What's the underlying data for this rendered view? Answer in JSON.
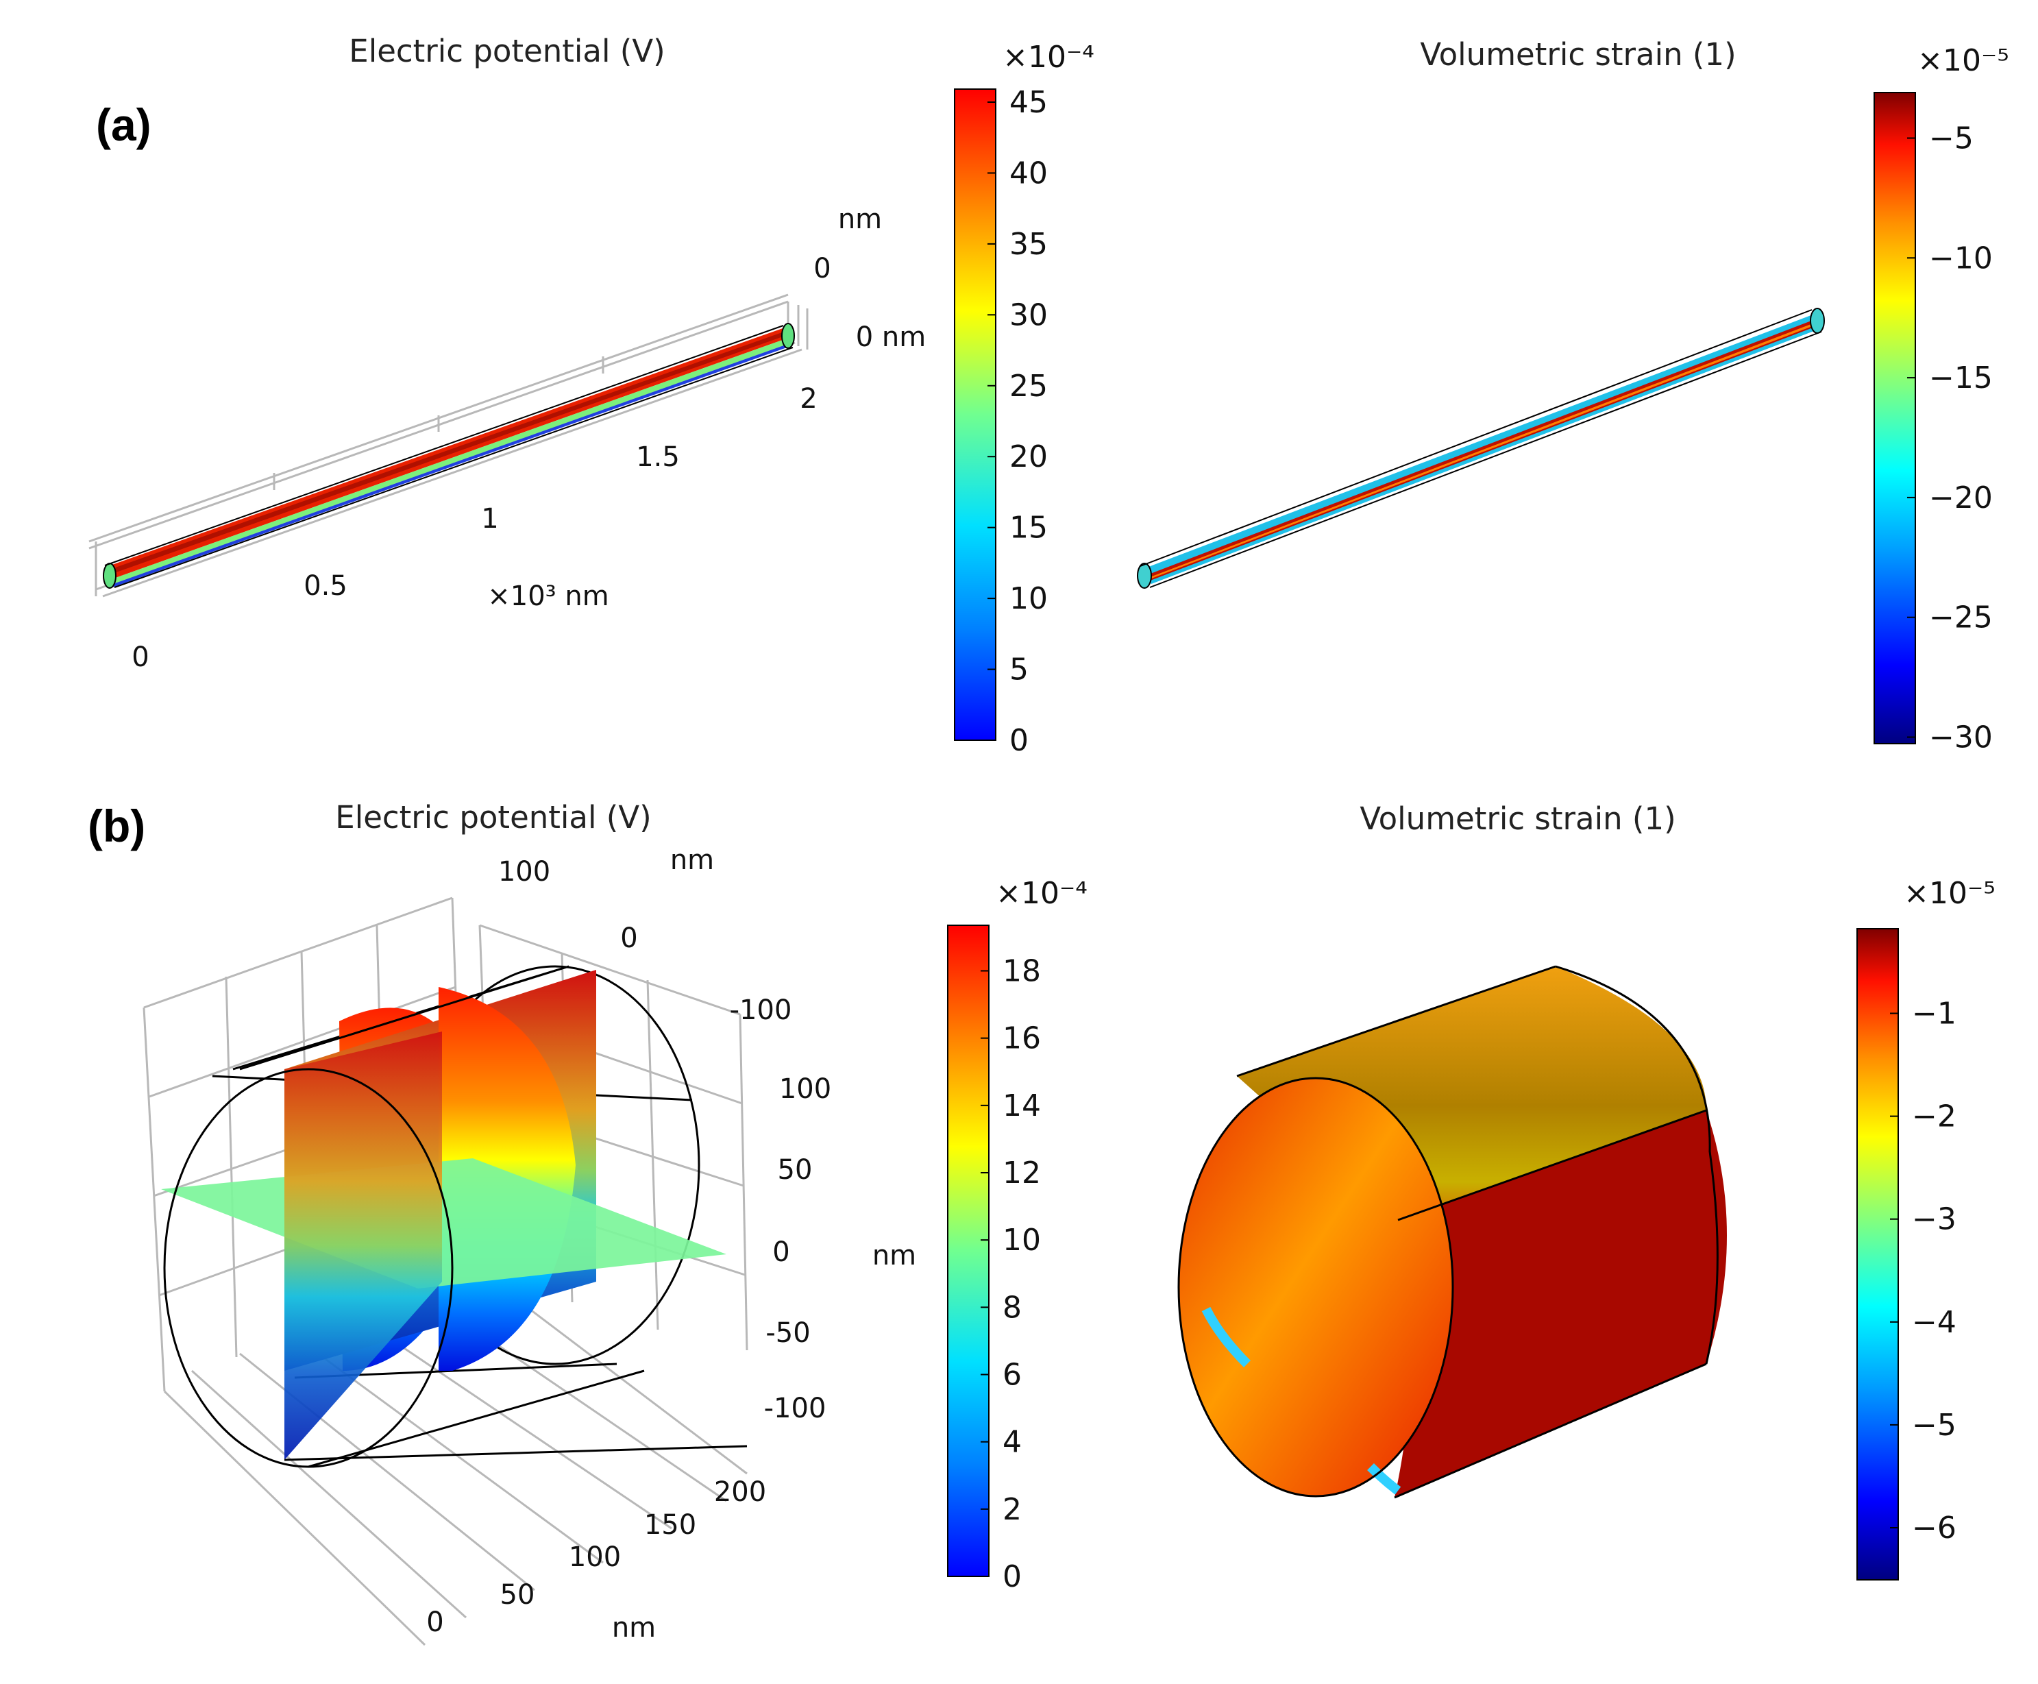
{
  "panels": {
    "a": {
      "label": "(a)",
      "left": {
        "title": "Electric potential (V)",
        "axes": {
          "y_unit": "nm",
          "y_tick": "0",
          "z_label": "0 nm",
          "x_ticks": [
            "0",
            "0.5",
            "1",
            "1.5",
            "2"
          ],
          "x_unit": "×10³ nm"
        },
        "colorbar": {
          "multiplier": "×10⁻⁴",
          "ticks": [
            "0",
            "5",
            "10",
            "15",
            "20",
            "25",
            "30",
            "35",
            "40",
            "45"
          ],
          "colormap": "jet"
        }
      },
      "right": {
        "title": "Volumetric strain (1)",
        "colorbar": {
          "multiplier": "×10⁻⁵",
          "ticks": [
            "-30",
            "-25",
            "-20",
            "-15",
            "-10",
            "-5"
          ],
          "colormap": "jet"
        }
      }
    },
    "b": {
      "label": "(b)",
      "left": {
        "title": "Electric potential (V)",
        "axes": {
          "top_unit": "nm",
          "top_ticks": [
            "100",
            "0",
            "-100"
          ],
          "z_ticks": [
            "100",
            "50",
            "0",
            "-50",
            "-100"
          ],
          "z_unit": "nm",
          "x_ticks": [
            "0",
            "50",
            "100",
            "150",
            "200"
          ],
          "x_unit": "nm"
        },
        "colorbar": {
          "multiplier": "×10⁻⁴",
          "ticks": [
            "0",
            "2",
            "4",
            "6",
            "8",
            "10",
            "12",
            "14",
            "16",
            "18"
          ],
          "colormap": "jet"
        }
      },
      "right": {
        "title": "Volumetric strain (1)",
        "colorbar": {
          "multiplier": "×10⁻⁵",
          "ticks": [
            "-6",
            "-5",
            "-4",
            "-3",
            "-2",
            "-1"
          ],
          "colormap": "jet"
        }
      }
    }
  },
  "colors": {
    "jet": [
      "#00007f",
      "#0000ff",
      "#007fff",
      "#00ffff",
      "#7fff7f",
      "#ffff00",
      "#ff7f00",
      "#ff0000",
      "#7f0000"
    ]
  }
}
